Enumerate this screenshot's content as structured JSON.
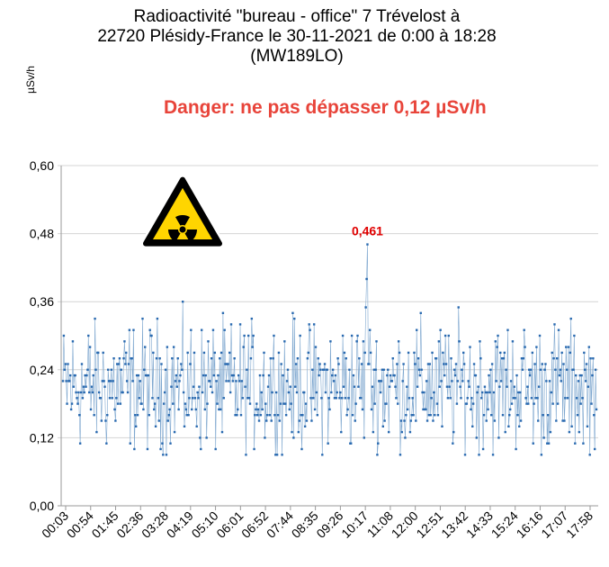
{
  "title": "Radioactivité \"bureau - office\"  7 Trévelost à\n22720 Plésidy-France le 30-11-2021 de 0:00 à 18:28\n(MW189LO)",
  "subtitle": "Danger: ne pas dépasser 0,12 µSv/h",
  "colors": {
    "series": "#2a6ab0",
    "subtitle": "#e8443a",
    "peak_label": "#e00000",
    "hazard_fill": "#ffd500"
  },
  "icons": {
    "hazard": "radiation-hazard-icon"
  },
  "chart_data": {
    "type": "line",
    "ylabel": "µSv/h",
    "xlabel": "",
    "ylim": [
      0,
      0.6
    ],
    "yticks": [
      "0,00",
      "0,12",
      "0,24",
      "0,36",
      "0,48",
      "0,60"
    ],
    "ytick_values": [
      0,
      0.12,
      0.24,
      0.36,
      0.48,
      0.6
    ],
    "xticks": [
      "00:03",
      "00:54",
      "01:45",
      "02:36",
      "03:28",
      "04:19",
      "05:10",
      "06:01",
      "06:52",
      "07:44",
      "08:35",
      "09:26",
      "10:17",
      "11:08",
      "12:00",
      "12:51",
      "13:42",
      "14:33",
      "15:24",
      "16:16",
      "17:07",
      "17:58"
    ],
    "grid": true,
    "legend": "none",
    "annotations": [
      {
        "label": "0,461",
        "x": "10:17",
        "y": 0.461
      }
    ],
    "series_summary": {
      "interval_minutes": 1.7,
      "start": "00:03",
      "end": "18:28",
      "typical_range": [
        0.12,
        0.3
      ],
      "mean": 0.21,
      "peak": 0.461,
      "peak_time": "10:17",
      "min": 0.09
    }
  }
}
